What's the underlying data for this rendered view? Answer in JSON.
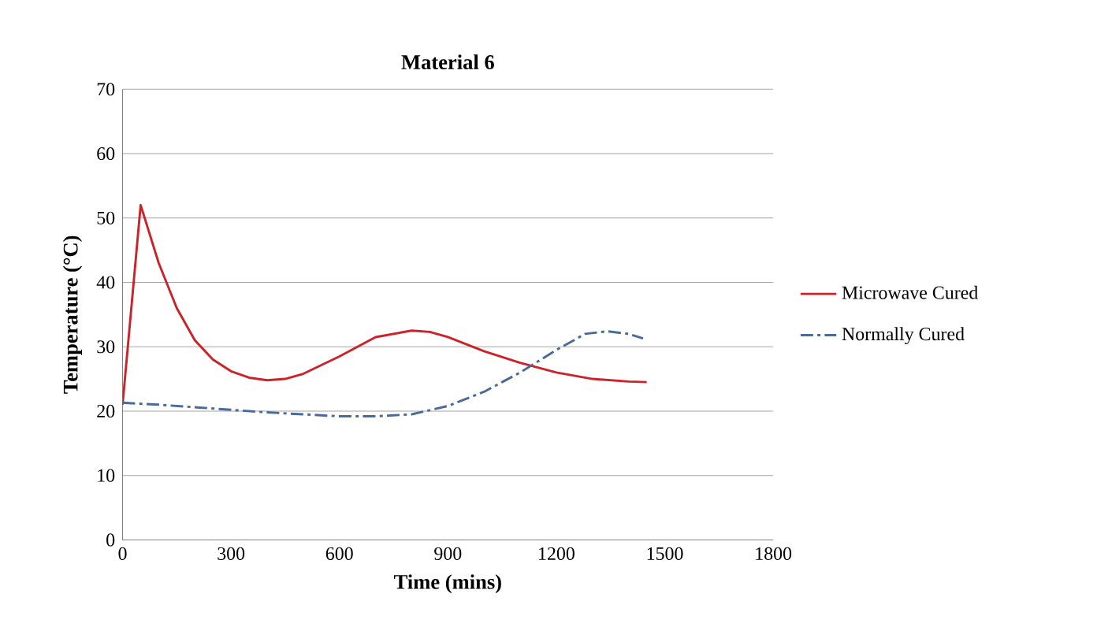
{
  "chart_data": {
    "type": "line",
    "title": "Material 6",
    "xlabel": "Time (mins)",
    "ylabel": "Temperature (°C)",
    "xlim": [
      0,
      1800
    ],
    "xticks": [
      0,
      300,
      600,
      900,
      1200,
      1500,
      1800
    ],
    "ylim": [
      0,
      70
    ],
    "yticks": [
      0,
      10,
      20,
      30,
      40,
      50,
      60,
      70
    ],
    "grid": "y",
    "legend": "right",
    "series": [
      {
        "name": "Microwave Cured",
        "color": "#cc2229",
        "line_style": "solid",
        "x": [
          0,
          50,
          100,
          150,
          200,
          250,
          300,
          350,
          400,
          450,
          500,
          600,
          700,
          800,
          850,
          900,
          1000,
          1100,
          1200,
          1300,
          1400,
          1450
        ],
        "values": [
          21,
          52,
          43,
          36,
          31,
          28,
          26.2,
          25.2,
          24.8,
          25,
          25.8,
          28.5,
          31.5,
          32.5,
          32.3,
          31.5,
          29.3,
          27.5,
          26,
          25,
          24.6,
          24.5
        ]
      },
      {
        "name": "Normally Cured",
        "color": "#4a6a9a",
        "line_style": "dashed",
        "x": [
          0,
          100,
          200,
          300,
          400,
          500,
          600,
          700,
          800,
          900,
          1000,
          1100,
          1200,
          1280,
          1340,
          1400,
          1440
        ],
        "values": [
          21.3,
          21,
          20.6,
          20.2,
          19.8,
          19.5,
          19.2,
          19.2,
          19.5,
          20.8,
          23,
          26,
          29.5,
          32,
          32.4,
          32,
          31.3
        ]
      }
    ]
  }
}
